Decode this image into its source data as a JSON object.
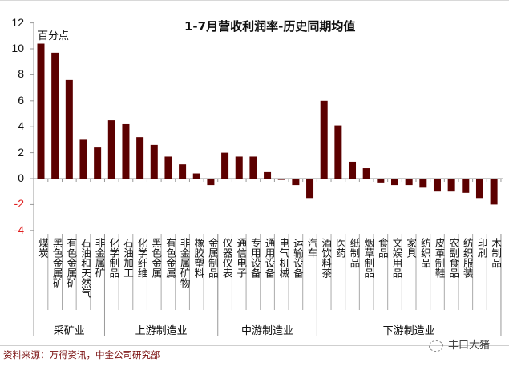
{
  "chart_data": {
    "type": "bar",
    "title": "1-7月营收利润率-历史同期均值",
    "ylabel": "百分点",
    "xlabel": "",
    "ylim": [
      -4,
      12
    ],
    "yticks": [
      12,
      10,
      8,
      6,
      4,
      2,
      0,
      -2,
      -4
    ],
    "bar_color": "#5c0000",
    "negative_tick_color": "#e02020",
    "grid": false,
    "legend": null,
    "categories": [
      "煤炭",
      "黑色金属矿",
      "有色金属矿",
      "石油和天然气",
      "非金属矿",
      "化学制品",
      "石油加工",
      "化学纤维",
      "黑色金属",
      "有色金属",
      "非金属矿物",
      "橡胶塑料",
      "金属制品",
      "仪器仪表",
      "通信电子",
      "专用设备",
      "通用设备",
      "电气机械",
      "运输设备",
      "汽车",
      "酒饮料茶",
      "医药",
      "纸制品",
      "烟草制品",
      "食品",
      "文娱用品",
      "家具",
      "纺织品",
      "皮革制鞋",
      "农副食品",
      "纺织服装",
      "印刷",
      "木制品"
    ],
    "values": [
      10.4,
      9.7,
      7.6,
      3.0,
      2.4,
      4.5,
      4.2,
      3.2,
      2.6,
      1.7,
      1.1,
      0.4,
      -0.5,
      2.0,
      1.7,
      1.7,
      0.5,
      -0.1,
      -0.5,
      -1.5,
      6.0,
      4.1,
      1.3,
      0.8,
      -0.3,
      -0.5,
      -0.5,
      -0.7,
      -1.0,
      -1.0,
      -1.1,
      -1.5,
      -2.0
    ],
    "groups": [
      {
        "label": "采矿业",
        "start": 0,
        "end": 4
      },
      {
        "label": "上游制造业",
        "start": 5,
        "end": 12
      },
      {
        "label": "中游制造业",
        "start": 13,
        "end": 19
      },
      {
        "label": "下游制造业",
        "start": 20,
        "end": 32
      }
    ]
  },
  "footer": {
    "source": "资料来源：万得资讯，中金公司研究部",
    "watermark": "丰口大猪"
  }
}
